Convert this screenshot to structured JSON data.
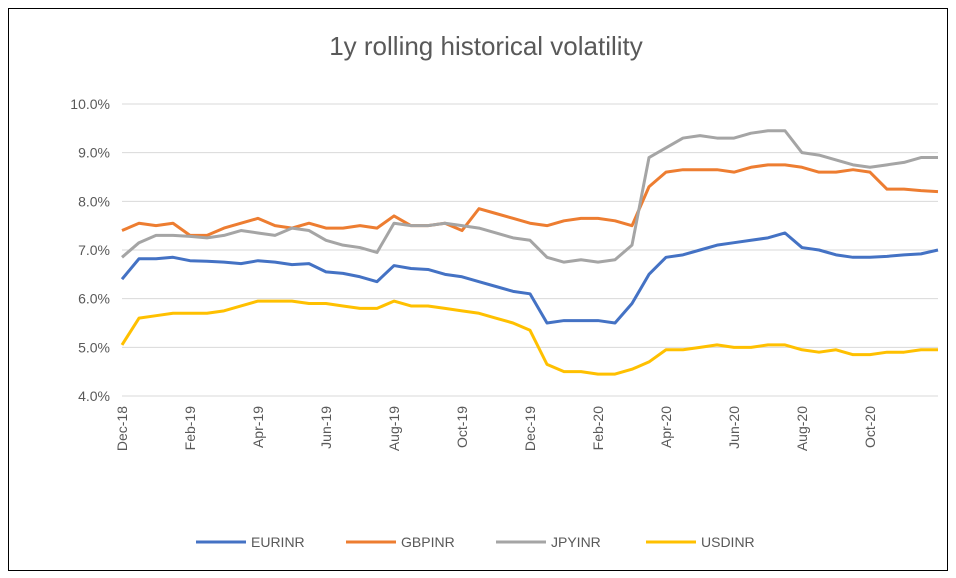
{
  "chart_data": {
    "type": "line",
    "title": "1y rolling historical volatility",
    "categories": [
      "Dec-18",
      null,
      null,
      null,
      "Feb-19",
      null,
      null,
      null,
      "Apr-19",
      null,
      null,
      null,
      "Jun-19",
      null,
      null,
      null,
      "Aug-19",
      null,
      null,
      null,
      "Oct-19",
      null,
      null,
      null,
      "Dec-19",
      null,
      null,
      null,
      "Feb-20",
      null,
      null,
      null,
      "Apr-20",
      null,
      null,
      null,
      "Jun-20",
      null,
      null,
      null,
      "Aug-20",
      null,
      null,
      null,
      "Oct-20",
      null,
      null,
      null,
      null
    ],
    "series": [
      {
        "name": "EURINR",
        "color": "#4472c4",
        "values": [
          6.4,
          6.82,
          6.82,
          6.85,
          6.78,
          6.77,
          6.75,
          6.72,
          6.78,
          6.75,
          6.7,
          6.72,
          6.55,
          6.52,
          6.45,
          6.35,
          6.68,
          6.62,
          6.6,
          6.5,
          6.45,
          6.35,
          6.25,
          6.15,
          6.1,
          5.5,
          5.55,
          5.55,
          5.55,
          5.5,
          5.9,
          6.5,
          6.85,
          6.9,
          7.0,
          7.1,
          7.15,
          7.2,
          7.25,
          7.35,
          7.05,
          7.0,
          6.9,
          6.85,
          6.85,
          6.87,
          6.9,
          6.92,
          7.0
        ]
      },
      {
        "name": "GBPINR",
        "color": "#ed7d31",
        "values": [
          7.4,
          7.55,
          7.5,
          7.55,
          7.3,
          7.3,
          7.45,
          7.55,
          7.65,
          7.5,
          7.45,
          7.55,
          7.45,
          7.45,
          7.5,
          7.45,
          7.7,
          7.5,
          7.5,
          7.55,
          7.4,
          7.85,
          7.75,
          7.65,
          7.55,
          7.5,
          7.6,
          7.65,
          7.65,
          7.6,
          7.5,
          8.3,
          8.6,
          8.65,
          8.65,
          8.65,
          8.6,
          8.7,
          8.75,
          8.75,
          8.7,
          8.6,
          8.6,
          8.65,
          8.6,
          8.25,
          8.25,
          8.22,
          8.2
        ]
      },
      {
        "name": "JPYINR",
        "color": "#a5a5a5",
        "values": [
          6.85,
          7.15,
          7.3,
          7.3,
          7.28,
          7.25,
          7.3,
          7.4,
          7.35,
          7.3,
          7.45,
          7.4,
          7.2,
          7.1,
          7.05,
          6.95,
          7.55,
          7.5,
          7.5,
          7.55,
          7.5,
          7.45,
          7.35,
          7.25,
          7.2,
          6.85,
          6.75,
          6.8,
          6.75,
          6.8,
          7.1,
          8.9,
          9.1,
          9.3,
          9.35,
          9.3,
          9.3,
          9.4,
          9.45,
          9.45,
          9.0,
          8.95,
          8.85,
          8.75,
          8.7,
          8.75,
          8.8,
          8.9,
          8.9
        ]
      },
      {
        "name": "USDINR",
        "color": "#ffc000",
        "values": [
          5.05,
          5.6,
          5.65,
          5.7,
          5.7,
          5.7,
          5.75,
          5.85,
          5.95,
          5.95,
          5.95,
          5.9,
          5.9,
          5.85,
          5.8,
          5.8,
          5.95,
          5.85,
          5.85,
          5.8,
          5.75,
          5.7,
          5.6,
          5.5,
          5.35,
          4.65,
          4.5,
          4.5,
          4.45,
          4.45,
          4.55,
          4.7,
          4.95,
          4.95,
          5.0,
          5.05,
          5.0,
          5.0,
          5.05,
          5.05,
          4.95,
          4.9,
          4.95,
          4.85,
          4.85,
          4.9,
          4.9,
          4.95,
          4.95
        ]
      }
    ],
    "ylim": [
      4,
      10
    ],
    "yticks": [
      {
        "value": 4,
        "label": "4.0%"
      },
      {
        "value": 5,
        "label": "5.0%"
      },
      {
        "value": 6,
        "label": "6.0%"
      },
      {
        "value": 7,
        "label": "7.0%"
      },
      {
        "value": 8,
        "label": "8.0%"
      },
      {
        "value": 9,
        "label": "9.0%"
      },
      {
        "value": 10,
        "label": "10.0%"
      }
    ],
    "grid": true,
    "legend": "bottom"
  }
}
